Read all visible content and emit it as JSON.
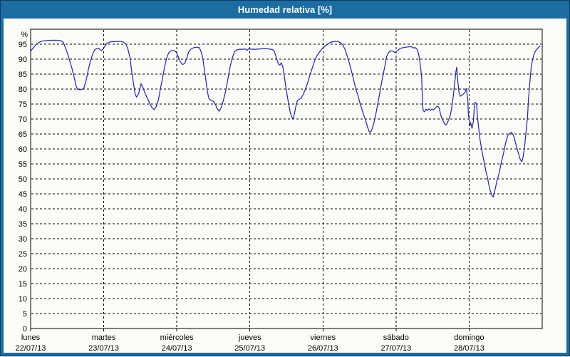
{
  "window": {
    "title": "Humedad relativa [%]"
  },
  "colors": {
    "titlebar": "#1b6ca0",
    "frame_border": "#0a3c64",
    "background": "#fbfbf7",
    "line": "#2222b2",
    "grid": "#000000",
    "axis": "#000000",
    "title_text": "#ffffff"
  },
  "chart_data": {
    "type": "line",
    "title": "Humedad relativa [%]",
    "ylabel": "%",
    "ylim": [
      0,
      100
    ],
    "y_ticks": [
      0,
      5,
      10,
      15,
      20,
      25,
      30,
      35,
      40,
      45,
      50,
      55,
      60,
      65,
      70,
      75,
      80,
      85,
      90,
      95
    ],
    "xlim_days": [
      0,
      7
    ],
    "grid": "dashed",
    "legend_position": "none",
    "x_ticks": [
      {
        "day": "lunes",
        "date": "22/07/13",
        "pos": 0
      },
      {
        "day": "martes",
        "date": "23/07/13",
        "pos": 1
      },
      {
        "day": "miércoles",
        "date": "24/07/13",
        "pos": 2
      },
      {
        "day": "jueves",
        "date": "25/07/13",
        "pos": 3
      },
      {
        "day": "viernes",
        "date": "26/07/13",
        "pos": 4
      },
      {
        "day": "sábado",
        "date": "27/07/13",
        "pos": 5
      },
      {
        "day": "domingo",
        "date": "28/07/13",
        "pos": 6
      }
    ],
    "series": [
      {
        "name": "Humedad relativa [%]",
        "x_unit": "days since 22/07/13 00:00",
        "points": [
          [
            0.0,
            92.7
          ],
          [
            0.03,
            93.6
          ],
          [
            0.08,
            95.0
          ],
          [
            0.13,
            95.8
          ],
          [
            0.18,
            96.1
          ],
          [
            0.27,
            96.3
          ],
          [
            0.37,
            96.3
          ],
          [
            0.42,
            96.1
          ],
          [
            0.45,
            95.5
          ],
          [
            0.48,
            93.5
          ],
          [
            0.51,
            91.5
          ],
          [
            0.54,
            89.0
          ],
          [
            0.57,
            86.5
          ],
          [
            0.6,
            83.5
          ],
          [
            0.62,
            81.2
          ],
          [
            0.64,
            80.0
          ],
          [
            0.67,
            79.8
          ],
          [
            0.7,
            79.8
          ],
          [
            0.73,
            80.5
          ],
          [
            0.76,
            83.0
          ],
          [
            0.79,
            86.5
          ],
          [
            0.82,
            89.5
          ],
          [
            0.85,
            91.8
          ],
          [
            0.88,
            93.2
          ],
          [
            0.91,
            93.6
          ],
          [
            0.94,
            93.4
          ],
          [
            0.97,
            92.9
          ],
          [
            0.99,
            93.3
          ],
          [
            1.02,
            94.5
          ],
          [
            1.05,
            95.4
          ],
          [
            1.1,
            95.8
          ],
          [
            1.17,
            95.9
          ],
          [
            1.23,
            95.9
          ],
          [
            1.27,
            95.7
          ],
          [
            1.3,
            95.2
          ],
          [
            1.33,
            93.5
          ],
          [
            1.36,
            90.5
          ],
          [
            1.38,
            86.5
          ],
          [
            1.41,
            81.5
          ],
          [
            1.43,
            78.3
          ],
          [
            1.45,
            77.3
          ],
          [
            1.48,
            78.6
          ],
          [
            1.51,
            81.8
          ],
          [
            1.54,
            80.3
          ],
          [
            1.57,
            78.3
          ],
          [
            1.6,
            76.8
          ],
          [
            1.63,
            75.2
          ],
          [
            1.66,
            73.8
          ],
          [
            1.69,
            73.1
          ],
          [
            1.72,
            74.2
          ],
          [
            1.75,
            76.5
          ],
          [
            1.77,
            79.5
          ],
          [
            1.8,
            83.0
          ],
          [
            1.83,
            87.0
          ],
          [
            1.86,
            90.3
          ],
          [
            1.89,
            92.2
          ],
          [
            1.92,
            92.8
          ],
          [
            1.96,
            92.9
          ],
          [
            1.99,
            92.4
          ],
          [
            2.02,
            90.8
          ],
          [
            2.05,
            89.0
          ],
          [
            2.08,
            88.2
          ],
          [
            2.11,
            88.6
          ],
          [
            2.14,
            90.5
          ],
          [
            2.16,
            92.3
          ],
          [
            2.19,
            93.3
          ],
          [
            2.23,
            93.8
          ],
          [
            2.27,
            94.0
          ],
          [
            2.31,
            93.8
          ],
          [
            2.34,
            92.0
          ],
          [
            2.36,
            89.5
          ],
          [
            2.38,
            86.0
          ],
          [
            2.4,
            82.5
          ],
          [
            2.42,
            79.0
          ],
          [
            2.44,
            76.8
          ],
          [
            2.47,
            76.2
          ],
          [
            2.5,
            75.9
          ],
          [
            2.53,
            74.8
          ],
          [
            2.55,
            73.5
          ],
          [
            2.58,
            72.6
          ],
          [
            2.61,
            73.9
          ],
          [
            2.64,
            76.5
          ],
          [
            2.67,
            79.5
          ],
          [
            2.7,
            83.5
          ],
          [
            2.73,
            87.5
          ],
          [
            2.76,
            90.5
          ],
          [
            2.79,
            92.5
          ],
          [
            2.82,
            93.1
          ],
          [
            2.86,
            93.3
          ],
          [
            2.91,
            93.3
          ],
          [
            2.94,
            93.4
          ],
          [
            2.96,
            92.9
          ],
          [
            2.98,
            93.4
          ],
          [
            3.03,
            93.3
          ],
          [
            3.08,
            93.3
          ],
          [
            3.14,
            93.4
          ],
          [
            3.2,
            93.5
          ],
          [
            3.26,
            93.4
          ],
          [
            3.31,
            93.2
          ],
          [
            3.33,
            92.8
          ],
          [
            3.35,
            91.5
          ],
          [
            3.37,
            89.8
          ],
          [
            3.39,
            88.4
          ],
          [
            3.41,
            88.0
          ],
          [
            3.43,
            88.8
          ],
          [
            3.45,
            87.5
          ],
          [
            3.47,
            84.5
          ],
          [
            3.49,
            81.0
          ],
          [
            3.51,
            78.0
          ],
          [
            3.53,
            75.0
          ],
          [
            3.55,
            72.5
          ],
          [
            3.57,
            70.8
          ],
          [
            3.59,
            70.0
          ],
          [
            3.61,
            71.8
          ],
          [
            3.63,
            74.3
          ],
          [
            3.65,
            76.2
          ],
          [
            3.68,
            76.6
          ],
          [
            3.7,
            76.9
          ],
          [
            3.73,
            78.2
          ],
          [
            3.76,
            80.0
          ],
          [
            3.79,
            82.0
          ],
          [
            3.82,
            84.5
          ],
          [
            3.85,
            86.8
          ],
          [
            3.88,
            89.0
          ],
          [
            3.91,
            90.8
          ],
          [
            3.95,
            92.3
          ],
          [
            3.99,
            93.5
          ],
          [
            4.03,
            94.4
          ],
          [
            4.07,
            95.1
          ],
          [
            4.1,
            95.6
          ],
          [
            4.15,
            95.9
          ],
          [
            4.2,
            95.9
          ],
          [
            4.24,
            95.5
          ],
          [
            4.27,
            94.8
          ],
          [
            4.3,
            93.3
          ],
          [
            4.33,
            91.2
          ],
          [
            4.36,
            88.8
          ],
          [
            4.39,
            86.0
          ],
          [
            4.42,
            83.0
          ],
          [
            4.45,
            80.0
          ],
          [
            4.48,
            77.8
          ],
          [
            4.5,
            75.8
          ],
          [
            4.53,
            73.5
          ],
          [
            4.56,
            71.2
          ],
          [
            4.59,
            69.0
          ],
          [
            4.61,
            67.3
          ],
          [
            4.63,
            65.9
          ],
          [
            4.65,
            65.5
          ],
          [
            4.67,
            66.5
          ],
          [
            4.7,
            69.0
          ],
          [
            4.73,
            72.5
          ],
          [
            4.76,
            76.3
          ],
          [
            4.79,
            80.5
          ],
          [
            4.82,
            84.5
          ],
          [
            4.85,
            88.0
          ],
          [
            4.87,
            90.8
          ],
          [
            4.9,
            92.3
          ],
          [
            4.93,
            92.8
          ],
          [
            4.96,
            92.6
          ],
          [
            4.99,
            92.2
          ],
          [
            5.02,
            92.9
          ],
          [
            5.05,
            93.5
          ],
          [
            5.09,
            93.8
          ],
          [
            5.13,
            94.0
          ],
          [
            5.17,
            94.1
          ],
          [
            5.21,
            94.2
          ],
          [
            5.24,
            93.7
          ],
          [
            5.26,
            93.9
          ],
          [
            5.29,
            93.2
          ],
          [
            5.31,
            91.5
          ],
          [
            5.33,
            88.5
          ],
          [
            5.35,
            84.0
          ],
          [
            5.36,
            77.0
          ],
          [
            5.37,
            72.8
          ],
          [
            5.39,
            72.4
          ],
          [
            5.41,
            73.3
          ],
          [
            5.43,
            72.8
          ],
          [
            5.45,
            73.4
          ],
          [
            5.47,
            72.9
          ],
          [
            5.49,
            73.3
          ],
          [
            5.51,
            73.0
          ],
          [
            5.53,
            73.4
          ],
          [
            5.55,
            74.0
          ],
          [
            5.57,
            74.3
          ],
          [
            5.59,
            73.7
          ],
          [
            5.61,
            71.5
          ],
          [
            5.63,
            70.0
          ],
          [
            5.65,
            69.2
          ],
          [
            5.66,
            68.5
          ],
          [
            5.68,
            68.0
          ],
          [
            5.7,
            68.6
          ],
          [
            5.72,
            69.8
          ],
          [
            5.74,
            71.0
          ],
          [
            5.76,
            73.5
          ],
          [
            5.78,
            77.0
          ],
          [
            5.8,
            81.5
          ],
          [
            5.82,
            86.0
          ],
          [
            5.83,
            87.3
          ],
          [
            5.84,
            84.0
          ],
          [
            5.86,
            79.0
          ],
          [
            5.88,
            77.6
          ],
          [
            5.9,
            78.0
          ],
          [
            5.92,
            78.3
          ],
          [
            5.94,
            78.8
          ],
          [
            5.96,
            80.2
          ],
          [
            5.98,
            77.0
          ],
          [
            5.99,
            71.5
          ],
          [
            6.01,
            67.8
          ],
          [
            6.02,
            68.8
          ],
          [
            6.04,
            66.9
          ],
          [
            6.06,
            69.5
          ],
          [
            6.07,
            74.0
          ],
          [
            6.08,
            75.6
          ],
          [
            6.1,
            75.2
          ],
          [
            6.11,
            72.0
          ],
          [
            6.13,
            67.0
          ],
          [
            6.15,
            63.0
          ],
          [
            6.17,
            60.0
          ],
          [
            6.19,
            57.5
          ],
          [
            6.21,
            55.0
          ],
          [
            6.23,
            52.5
          ],
          [
            6.25,
            50.5
          ],
          [
            6.27,
            48.0
          ],
          [
            6.29,
            46.0
          ],
          [
            6.31,
            44.5
          ],
          [
            6.33,
            43.9
          ],
          [
            6.34,
            45.0
          ],
          [
            6.36,
            47.0
          ],
          [
            6.38,
            49.3
          ],
          [
            6.4,
            51.0
          ],
          [
            6.42,
            53.0
          ],
          [
            6.44,
            55.5
          ],
          [
            6.47,
            58.5
          ],
          [
            6.5,
            62.0
          ],
          [
            6.53,
            64.5
          ],
          [
            6.56,
            65.3
          ],
          [
            6.58,
            65.5
          ],
          [
            6.6,
            64.8
          ],
          [
            6.62,
            63.5
          ],
          [
            6.64,
            61.5
          ],
          [
            6.66,
            59.8
          ],
          [
            6.68,
            58.0
          ],
          [
            6.7,
            56.5
          ],
          [
            6.72,
            55.7
          ],
          [
            6.74,
            57.5
          ],
          [
            6.76,
            61.0
          ],
          [
            6.78,
            66.0
          ],
          [
            6.8,
            71.0
          ],
          [
            6.81,
            76.0
          ],
          [
            6.83,
            82.0
          ],
          [
            6.85,
            87.5
          ],
          [
            6.87,
            90.0
          ],
          [
            6.89,
            91.8
          ],
          [
            6.91,
            92.8
          ],
          [
            6.93,
            93.4
          ],
          [
            6.95,
            94.0
          ],
          [
            6.97,
            94.3
          ]
        ]
      }
    ]
  }
}
